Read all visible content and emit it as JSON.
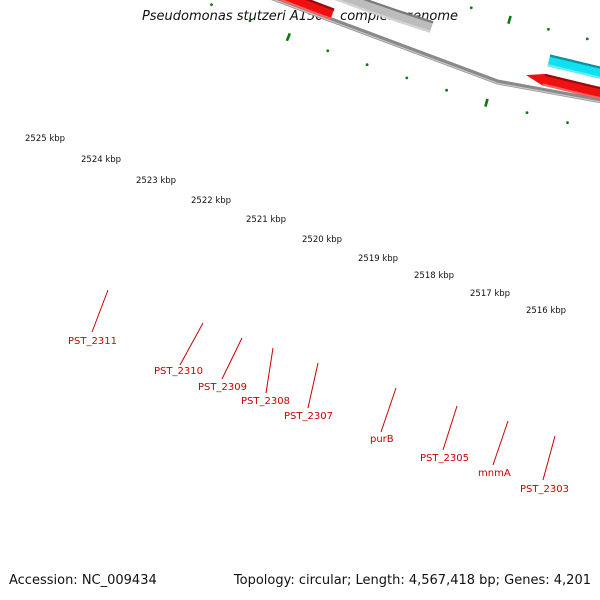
{
  "title": "Pseudomonas stutzeri A1501, complete genome",
  "footer": {
    "accession": "Accession: NC_009434",
    "summary": "Topology: circular; Length: 4,567,418 bp; Genes: 4,201"
  },
  "colors": {
    "tick": "#117711",
    "backbone": "#8a8a8a",
    "gene_label": "#cc0000",
    "red": "#ee1111",
    "cyan": "#11e0f0",
    "gray": "#bcbcbc",
    "darkgray": "#5a5a5a",
    "blue": "#22aaee",
    "pink": "#f08080",
    "magenta": "#e0148c"
  },
  "scale": {
    "labels": [
      "2525 kbp",
      "2524 kbp",
      "2523 kbp",
      "2522 kbp",
      "2521 kbp",
      "2520 kbp",
      "2519 kbp",
      "2518 kbp",
      "2517 kbp",
      "2516 kbp"
    ]
  },
  "genes": [
    {
      "label": "PST_2311",
      "color": "cyan"
    },
    {
      "label": "PST_2310",
      "color": "red"
    },
    {
      "label": "PST_2309",
      "color": "red"
    },
    {
      "label": "PST_2308",
      "color": "red"
    },
    {
      "label": "PST_2307",
      "color": "darkgray"
    },
    {
      "label": "purB",
      "color": "blue"
    },
    {
      "label": "PST_2305",
      "color": "gray"
    },
    {
      "label": "mnmA",
      "color": "pink"
    },
    {
      "label": "PST_2303",
      "color": "magenta"
    }
  ]
}
